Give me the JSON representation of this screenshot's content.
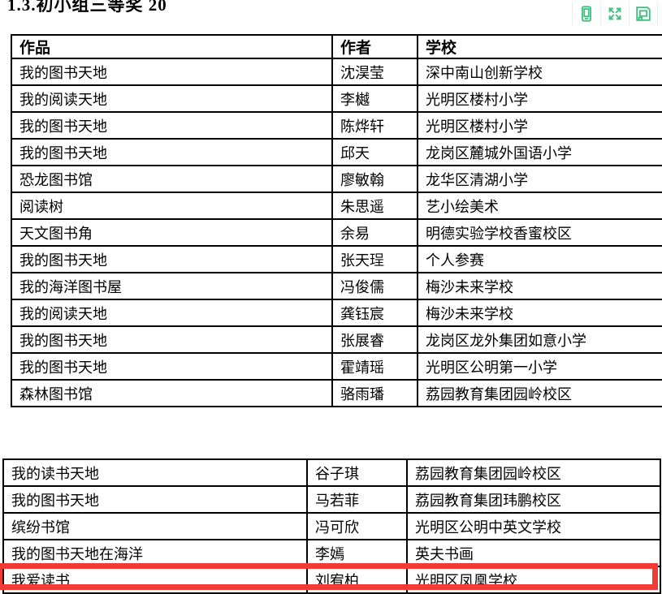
{
  "title": "1.3.初小组三等奖 20",
  "toolbar": {
    "icon_color": "#3ec07e",
    "buttons": [
      {
        "icon": "device-icon"
      },
      {
        "icon": "fullscreen-icon"
      },
      {
        "icon": "save-icon"
      },
      {
        "icon": "clipped-icon"
      }
    ]
  },
  "table1": {
    "headers": [
      "作品",
      "作者",
      "学校"
    ],
    "rows": [
      [
        "我的图书天地",
        "沈淏莹",
        "深中南山创新学校"
      ],
      [
        "我的阅读天地",
        "李樾",
        "光明区楼村小学"
      ],
      [
        "我的图书天地",
        "陈烨轩",
        "光明区楼村小学"
      ],
      [
        "我的图书天地",
        "邱天",
        "龙岗区麓城外国语小学"
      ],
      [
        "恐龙图书馆",
        "廖敏翰",
        "龙华区清湖小学"
      ],
      [
        "阅读树",
        "朱思遥",
        "艺小绘美术"
      ],
      [
        "天文图书角",
        "余易",
        "明德实验学校香蜜校区"
      ],
      [
        "我的图书天地",
        "张天珵",
        "个人参赛"
      ],
      [
        "我的海洋图书屋",
        "冯俊儒",
        "梅沙未来学校"
      ],
      [
        "我的阅读天地",
        "龚钰宸",
        "梅沙未来学校"
      ],
      [
        "我的图书天地",
        "张展睿",
        "龙岗区龙外集团如意小学"
      ],
      [
        "我的图书天地",
        "霍靖瑶",
        "光明区公明第一小学"
      ],
      [
        "森林图书馆",
        "骆雨璠",
        "荔园教育集团园岭校区"
      ]
    ]
  },
  "table2": {
    "rows": [
      [
        "我的读书天地",
        "谷子琪",
        "荔园教育集团园岭校区"
      ],
      [
        "我的图书天地",
        "马若菲",
        "荔园教育集团玮鹏校区"
      ],
      [
        "缤纷书馆",
        "冯可欣",
        "光明区公明中英文学校"
      ],
      [
        "我的图书天地在海洋",
        "李嫣",
        "英夫书画"
      ],
      [
        "我爱读书",
        "刘宥柏",
        "光明区凤凰学校"
      ]
    ],
    "highlighted_row_index": 4,
    "highlight_color": "#f23b34"
  }
}
